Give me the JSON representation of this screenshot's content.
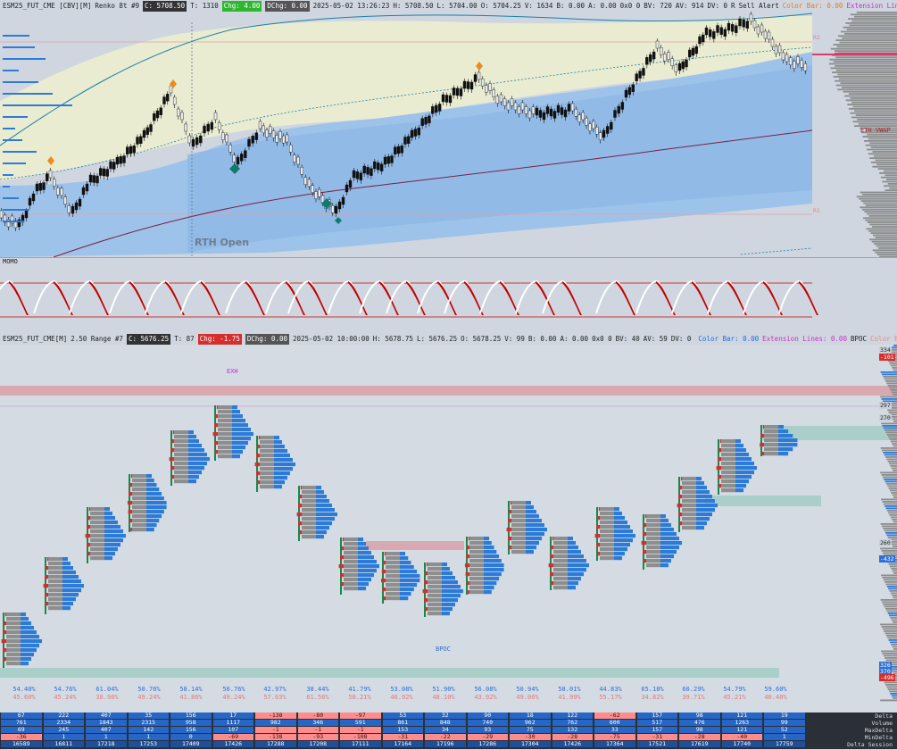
{
  "top_header": {
    "symbol": "ESM25_FUT_CME [CBV][M]",
    "chart_type": "Renko 8t #9",
    "close": "C: 5708.50",
    "ticks": "T: 1310",
    "chg": "Chg: 4.00",
    "dchg": "DChg: 0.00",
    "datetime": "2025-05-02 13:26:23",
    "high": "H: 5708.50",
    "low": "L: 5704.00",
    "open": "O: 5704.25",
    "volume": "V: 1634",
    "bid": "B: 0.00",
    "ask": "A: 0.00",
    "misc": "0x0 0",
    "bv": "BV: 720",
    "av": "AV: 914",
    "dv": "DV: 0",
    "r": "R",
    "alert": "Sell Alert",
    "color_bar": "Color Bar: 0.00",
    "ext_lines": "Extension Lines: 0.00",
    "tail": "R B"
  },
  "top_labels": {
    "rth_open": "RTH Open",
    "eth_vwap": "ETH VWAP",
    "r2": "R2",
    "r1": "R1",
    "momo": "MOMO"
  },
  "bottom_header": {
    "symbol": "ESM25_FUT_CME[M]",
    "chart_type": "2.50 Range #7",
    "close": "C: 5676.25",
    "ticks": "T: 87",
    "chg": "Chg: -1.75",
    "dchg": "DChg: 0.00",
    "datetime": "2025-05-02 10:00:00",
    "high": "H: 5678.75",
    "low": "L: 5676.25",
    "open": "O: 5678.25",
    "volume": "V: 99",
    "bid": "B: 0.00",
    "ask": "A: 0.00",
    "misc": "0x0 0",
    "bv": "BV: 40",
    "av": "AV: 59",
    "dv": "DV: 0",
    "color_bar": "Color Bar: 0.00",
    "ext_lines": "Extension Lines: 0.00",
    "bpoc": "BPOC",
    "color_tail": "Color Bar:"
  },
  "bottom_labels": {
    "exh": "EXH",
    "bpoc": "BPOC"
  },
  "right_axis": [
    "334",
    "-101",
    "297",
    "260",
    "270",
    "-432",
    "326",
    "370",
    "-496"
  ],
  "colors": {
    "bull": "#1e6fd9",
    "bear": "#d43030",
    "band_blue": "#9ec3ea",
    "band_yellow": "#e9ecd0",
    "momo_line": "#c40000"
  },
  "percent_row": {
    "top": [
      "54.40%",
      "54.76%",
      "61.04%",
      "50.76%",
      "58.14%",
      "50.76%",
      "42.97%",
      "38.44%",
      "41.79%",
      "53.08%",
      "51.90%",
      "56.08%",
      "50.94%",
      "58.01%",
      "44.83%",
      "65.18%",
      "60.29%",
      "54.79%",
      "59.60%"
    ],
    "bottom": [
      "45.60%",
      "45.24%",
      "38.96%",
      "49.24%",
      "41.86%",
      "49.24%",
      "57.03%",
      "61.56%",
      "58.21%",
      "46.92%",
      "48.10%",
      "43.92%",
      "49.06%",
      "41.99%",
      "55.17%",
      "34.82%",
      "39.71%",
      "45.21%",
      "40.40%"
    ]
  },
  "stats_table": {
    "labels": [
      "Delta",
      "Volume",
      "MaxDelta",
      "MinDelta",
      "Delta Session"
    ],
    "columns": [
      [
        "67",
        "761",
        "69",
        "-36",
        "16589"
      ],
      [
        "222",
        "2334",
        "245",
        "1",
        "16811"
      ],
      [
        "407",
        "1843",
        "407",
        "1",
        "17218"
      ],
      [
        "35",
        "2315",
        "142",
        "1",
        "17253"
      ],
      [
        "156",
        "958",
        "156",
        "0",
        "17409"
      ],
      [
        "17",
        "1117",
        "107",
        "-69",
        "17426"
      ],
      [
        "-138",
        "982",
        "-1",
        "-138",
        "17288"
      ],
      [
        "-80",
        "346",
        "-1",
        "-93",
        "17208"
      ],
      [
        "-97",
        "591",
        "-1",
        "-108",
        "17111"
      ],
      [
        "53",
        "861",
        "153",
        "-31",
        "17164"
      ],
      [
        "32",
        "848",
        "34",
        "-22",
        "17196"
      ],
      [
        "90",
        "740",
        "93",
        "-29",
        "17286"
      ],
      [
        "18",
        "962",
        "75",
        "-30",
        "17304"
      ],
      [
        "122",
        "762",
        "132",
        "-28",
        "17426"
      ],
      [
        "-62",
        "600",
        "33",
        "-75",
        "17364"
      ],
      [
        "157",
        "517",
        "157",
        "-31",
        "17521"
      ],
      [
        "98",
        "476",
        "98",
        "-28",
        "17619"
      ],
      [
        "121",
        "1263",
        "121",
        "-40",
        "17740"
      ],
      [
        "19",
        "99",
        "52",
        "1",
        "17759"
      ]
    ]
  }
}
